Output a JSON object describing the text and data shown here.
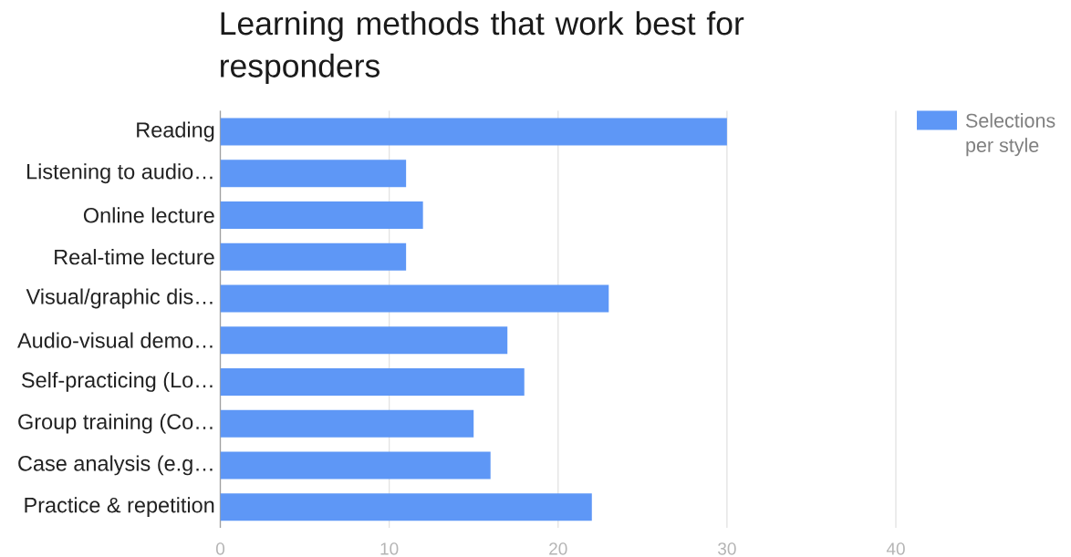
{
  "chart_data": {
    "type": "bar",
    "orientation": "horizontal",
    "title": "Learning methods that work best for responders",
    "categories": [
      "Reading",
      "Listening to audio…",
      "Online lecture",
      "Real-time lecture",
      "Visual/graphic dis…",
      "Audio-visual demo…",
      "Self-practicing (Lo…",
      "Group training (Co…",
      "Case analysis (e.g…",
      "Practice & repetition"
    ],
    "series": [
      {
        "name": "Selections per style",
        "color": "#5e97f6",
        "values": [
          30,
          11,
          12,
          11,
          23,
          17,
          18,
          15,
          16,
          22
        ]
      }
    ],
    "xlim": [
      0,
      40
    ],
    "xticks": [
      0,
      10,
      20,
      30,
      40
    ],
    "grid": "x",
    "legend": "right"
  }
}
